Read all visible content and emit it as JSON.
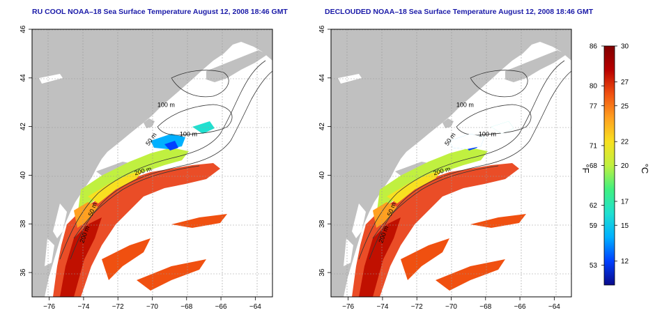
{
  "maps": [
    {
      "title": "RU COOL NOAA–18 Sea Surface Temperature August 12, 2008 18:46 GMT",
      "contour_labels": [
        "100 m",
        "100 m",
        "50 m",
        "200 m",
        "50 m",
        "200 m"
      ]
    },
    {
      "title": "DECLOUDED NOAA–18 Sea Surface Temperature August 12, 2008 18:46 GMT",
      "contour_labels": [
        "100 m",
        "100 m",
        "50 m",
        "200 m",
        "50 m",
        "200 m"
      ]
    }
  ],
  "axes": {
    "lat_ticks": [
      "46",
      "44",
      "42",
      "40",
      "38",
      "36"
    ],
    "lat_values": [
      46,
      44,
      42,
      40,
      38,
      36
    ],
    "lon_ticks": [
      "−76",
      "−74",
      "−72",
      "−70",
      "−68",
      "−66",
      "−64"
    ],
    "lon_values": [
      -76,
      -74,
      -72,
      -70,
      -68,
      -66,
      -64
    ],
    "lat_range": [
      35,
      46
    ],
    "lon_range": [
      -77,
      -63
    ]
  },
  "colorbar": {
    "f_label": "°F",
    "c_label": "°C",
    "f_ticks": [
      "86",
      "80",
      "77",
      "71",
      "68",
      "62",
      "59",
      "53"
    ],
    "f_values": [
      86,
      80,
      77,
      71,
      68,
      62,
      59,
      53
    ],
    "c_ticks": [
      "30",
      "27",
      "25",
      "22",
      "20",
      "17",
      "15",
      "12"
    ],
    "c_values": [
      30,
      27,
      25,
      22,
      20,
      17,
      15,
      12
    ],
    "c_range": [
      10,
      30
    ],
    "colors": [
      "#0a0a8a",
      "#0040ff",
      "#00b0ff",
      "#20e0d0",
      "#40f080",
      "#c0f040",
      "#f8e020",
      "#ffa020",
      "#f05010",
      "#b80000",
      "#800000"
    ]
  },
  "colors": {
    "land": "#c0c0c0",
    "ocean": "#ffffff",
    "title": "#1a1aa8",
    "grid": "#999999"
  }
}
